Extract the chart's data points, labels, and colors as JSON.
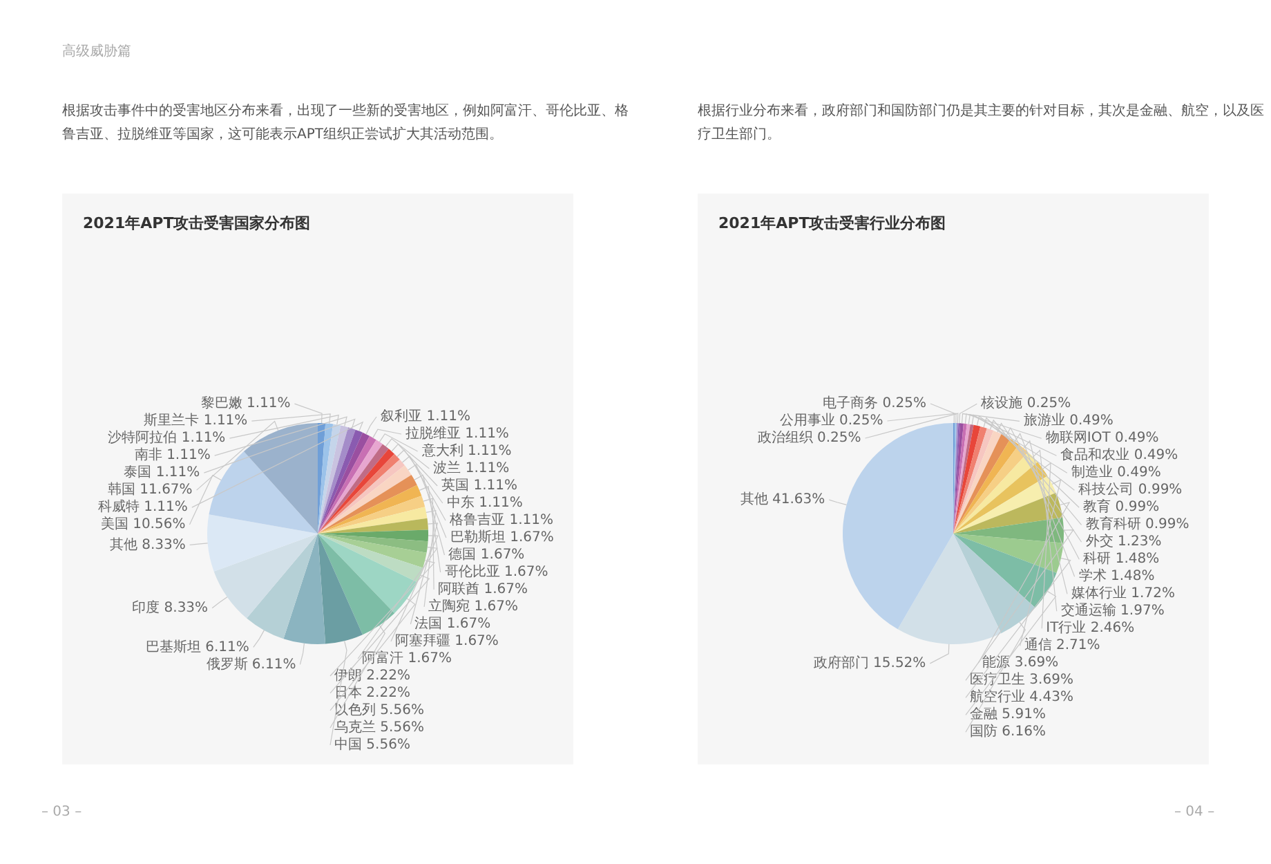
{
  "chart_data": [
    {
      "type": "pie",
      "title": "2021年APT攻击受害国家分布图",
      "annotations": [
        "高级威胁篇",
        "根据攻击事件中的受害地区分布来看，出现了一些新的受害地区，例如阿富汗、哥伦比亚、格鲁吉亚、拉脱维亚等国家，这可能表示APT组织正尝试扩大其活动范围。",
        "– 03 –"
      ],
      "categories": [
        "黎巴嫩",
        "斯里兰卡",
        "沙特阿拉伯",
        "南非",
        "泰国",
        "科威特",
        "叙利亚",
        "拉脱维亚",
        "意大利",
        "波兰",
        "英国",
        "中东",
        "格鲁吉亚",
        "巴勒斯坦",
        "德国",
        "哥伦比亚",
        "阿联酋",
        "立陶宛",
        "法国",
        "阿塞拜疆",
        "阿富汗",
        "伊朗",
        "日本",
        "以色列",
        "乌克兰",
        "中国",
        "俄罗斯",
        "巴基斯坦",
        "印度",
        "其他",
        "美国",
        "韩国"
      ],
      "values": [
        1.11,
        1.11,
        1.11,
        1.11,
        1.11,
        1.11,
        1.11,
        1.11,
        1.11,
        1.11,
        1.11,
        1.11,
        1.11,
        1.67,
        1.67,
        1.67,
        1.67,
        1.67,
        1.67,
        1.67,
        1.67,
        2.22,
        2.22,
        5.56,
        5.56,
        5.56,
        6.11,
        6.11,
        8.33,
        8.33,
        10.56,
        11.67
      ],
      "value_labels": [
        "1.11%",
        "1.11%",
        "1.11%",
        "1.11%",
        "1.11%",
        "1.11%",
        "1.11%",
        "1.11%",
        "1.11%",
        "1.11%",
        "1.11%",
        "1.11%",
        "1.11%",
        "1.67%",
        "1.67%",
        "1.67%",
        "1.67%",
        "1.67%",
        "1.67%",
        "1.67%",
        "1.67%",
        "2.22%",
        "2.22%",
        "5.56%",
        "5.56%",
        "5.56%",
        "6.11%",
        "6.11%",
        "8.33%",
        "8.33%",
        "10.56%",
        "11.67%"
      ],
      "colors": [
        "#6f9fd8",
        "#9cc3ea",
        "#c5d5ea",
        "#c9c3e0",
        "#a48dc9",
        "#8a5bb0",
        "#9a4fa0",
        "#c86fb3",
        "#e7a6d0",
        "#c06b86",
        "#e8463a",
        "#f08070",
        "#f6c6c0",
        "#f9d5c3",
        "#e59158",
        "#f0b553",
        "#f6cf85",
        "#f7e9a1",
        "#b9b85c",
        "#6aaa6a",
        "#8cbd82",
        "#a7cf95",
        "#bddcc3",
        "#9dd6c4",
        "#7dbda6",
        "#6b9ea3",
        "#8bb4c0",
        "#b5d0d6",
        "#d2e0e8",
        "#dbe8f5",
        "#bdd3ec",
        "#9bb2cc"
      ]
    },
    {
      "type": "pie",
      "title": "2021年APT攻击受害行业分布图",
      "annotations": [
        "根据行业分布来看，政府部门和国防部门仍是其主要的针对目标，其次是金融、航空，以及医疗卫生部门。",
        "– 04 –"
      ],
      "categories": [
        "电子商务",
        "公用事业",
        "政治组织",
        "核设施",
        "旅游业",
        "物联网IOT",
        "食品和农业",
        "制造业",
        "科技公司",
        "教育",
        "教育科研",
        "外交",
        "科研",
        "学术",
        "媒体行业",
        "交通运输",
        "IT行业",
        "通信",
        "能源",
        "医疗卫生",
        "航空行业",
        "金融",
        "国防",
        "政府部门",
        "其他"
      ],
      "values": [
        0.25,
        0.25,
        0.25,
        0.25,
        0.49,
        0.49,
        0.49,
        0.49,
        0.99,
        0.99,
        0.99,
        1.23,
        1.48,
        1.48,
        1.72,
        1.97,
        2.46,
        2.71,
        3.69,
        3.69,
        4.43,
        5.91,
        6.16,
        15.52,
        41.63
      ],
      "value_labels": [
        "0.25%",
        "0.25%",
        "0.25%",
        "0.25%",
        "0.49%",
        "0.49%",
        "0.49%",
        "0.49%",
        "0.99%",
        "0.99%",
        "0.99%",
        "1.23%",
        "1.48%",
        "1.48%",
        "1.72%",
        "1.97%",
        "2.46%",
        "2.71%",
        "3.69%",
        "3.69%",
        "4.43%",
        "5.91%",
        "6.16%",
        "15.52%",
        "41.63%"
      ],
      "colors": [
        "#6f9fd8",
        "#9cc3ea",
        "#a48dc9",
        "#8a5bb0",
        "#9a4fa0",
        "#c86fb3",
        "#e7a6d0",
        "#c06b86",
        "#e8463a",
        "#f08070",
        "#f6c6c0",
        "#f9d5c3",
        "#e59158",
        "#f0b553",
        "#f6cf85",
        "#f7e9a1",
        "#e8c35e",
        "#f7eeae",
        "#bcb85d",
        "#7fb87f",
        "#9ccb8f",
        "#7dbda6",
        "#b5d0d6",
        "#d2e0e8",
        "#bcd3ec"
      ]
    }
  ]
}
